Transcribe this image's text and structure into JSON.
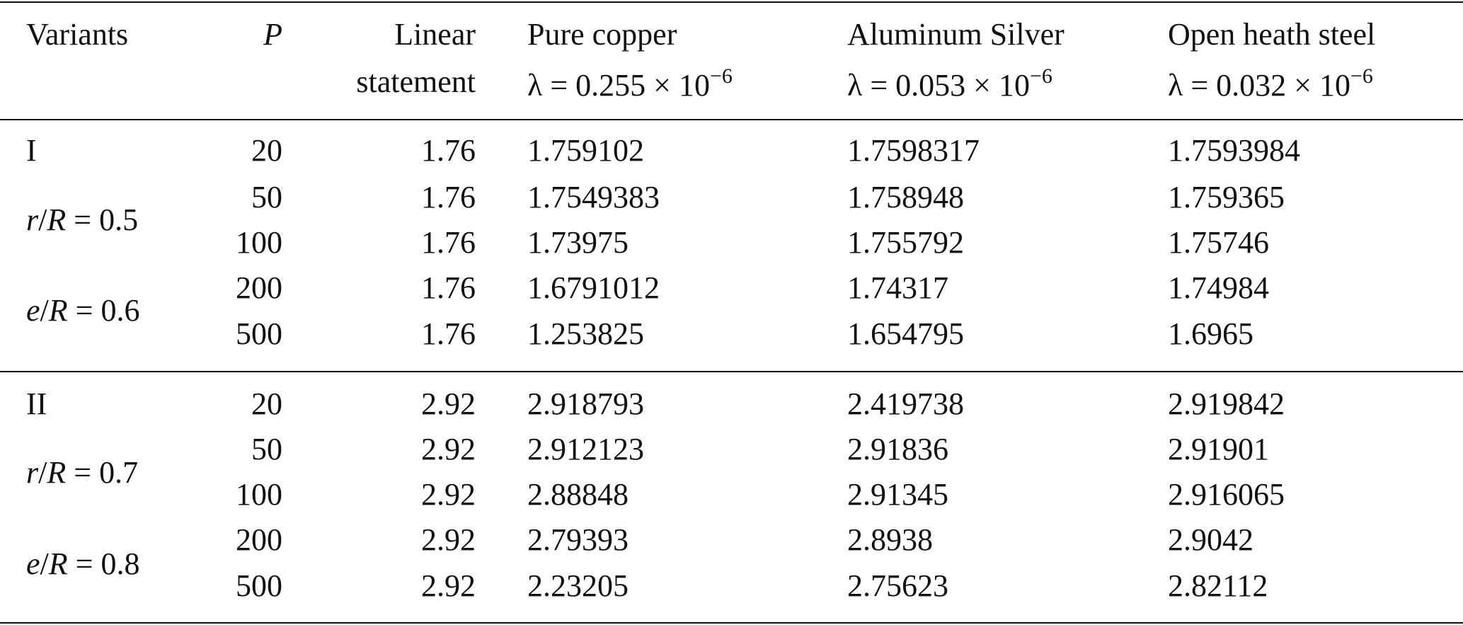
{
  "header": {
    "variants": "Variants",
    "p": "P",
    "linear": [
      "Linear",
      "statement"
    ],
    "materials": [
      {
        "name": "Pure copper",
        "lambda": "λ = 0.255 × 10",
        "exponent": "−6"
      },
      {
        "name": "Aluminum Silver",
        "lambda": "λ = 0.053 × 10",
        "exponent": "−6"
      },
      {
        "name": "Open heath steel",
        "lambda": "λ = 0.032 × 10",
        "exponent": "−6"
      }
    ]
  },
  "groups": [
    {
      "variant": "I",
      "conditions": [
        "r/R = 0.5",
        "e/R = 0.6"
      ],
      "rows": [
        [
          "20",
          "1.76",
          "1.759102",
          "1.7598317",
          "1.7593984"
        ],
        [
          "50",
          "1.76",
          "1.7549383",
          "1.758948",
          "1.759365"
        ],
        [
          "100",
          "1.76",
          "1.73975",
          "1.755792",
          "1.75746"
        ],
        [
          "200",
          "1.76",
          "1.6791012",
          "1.74317",
          "1.74984"
        ],
        [
          "500",
          "1.76",
          "1.253825",
          "1.654795",
          "1.6965"
        ]
      ]
    },
    {
      "variant": "II",
      "conditions": [
        "r/R = 0.7",
        "e/R = 0.8"
      ],
      "rows": [
        [
          "20",
          "2.92",
          "2.918793",
          "2.419738",
          "2.919842"
        ],
        [
          "50",
          "2.92",
          "2.912123",
          "2.91836",
          "2.91901"
        ],
        [
          "100",
          "2.92",
          "2.88848",
          "2.91345",
          "2.916065"
        ],
        [
          "200",
          "2.92",
          "2.79393",
          "2.8938",
          "2.9042"
        ],
        [
          "500",
          "2.92",
          "2.23205",
          "2.75623",
          "2.82112"
        ]
      ]
    }
  ]
}
